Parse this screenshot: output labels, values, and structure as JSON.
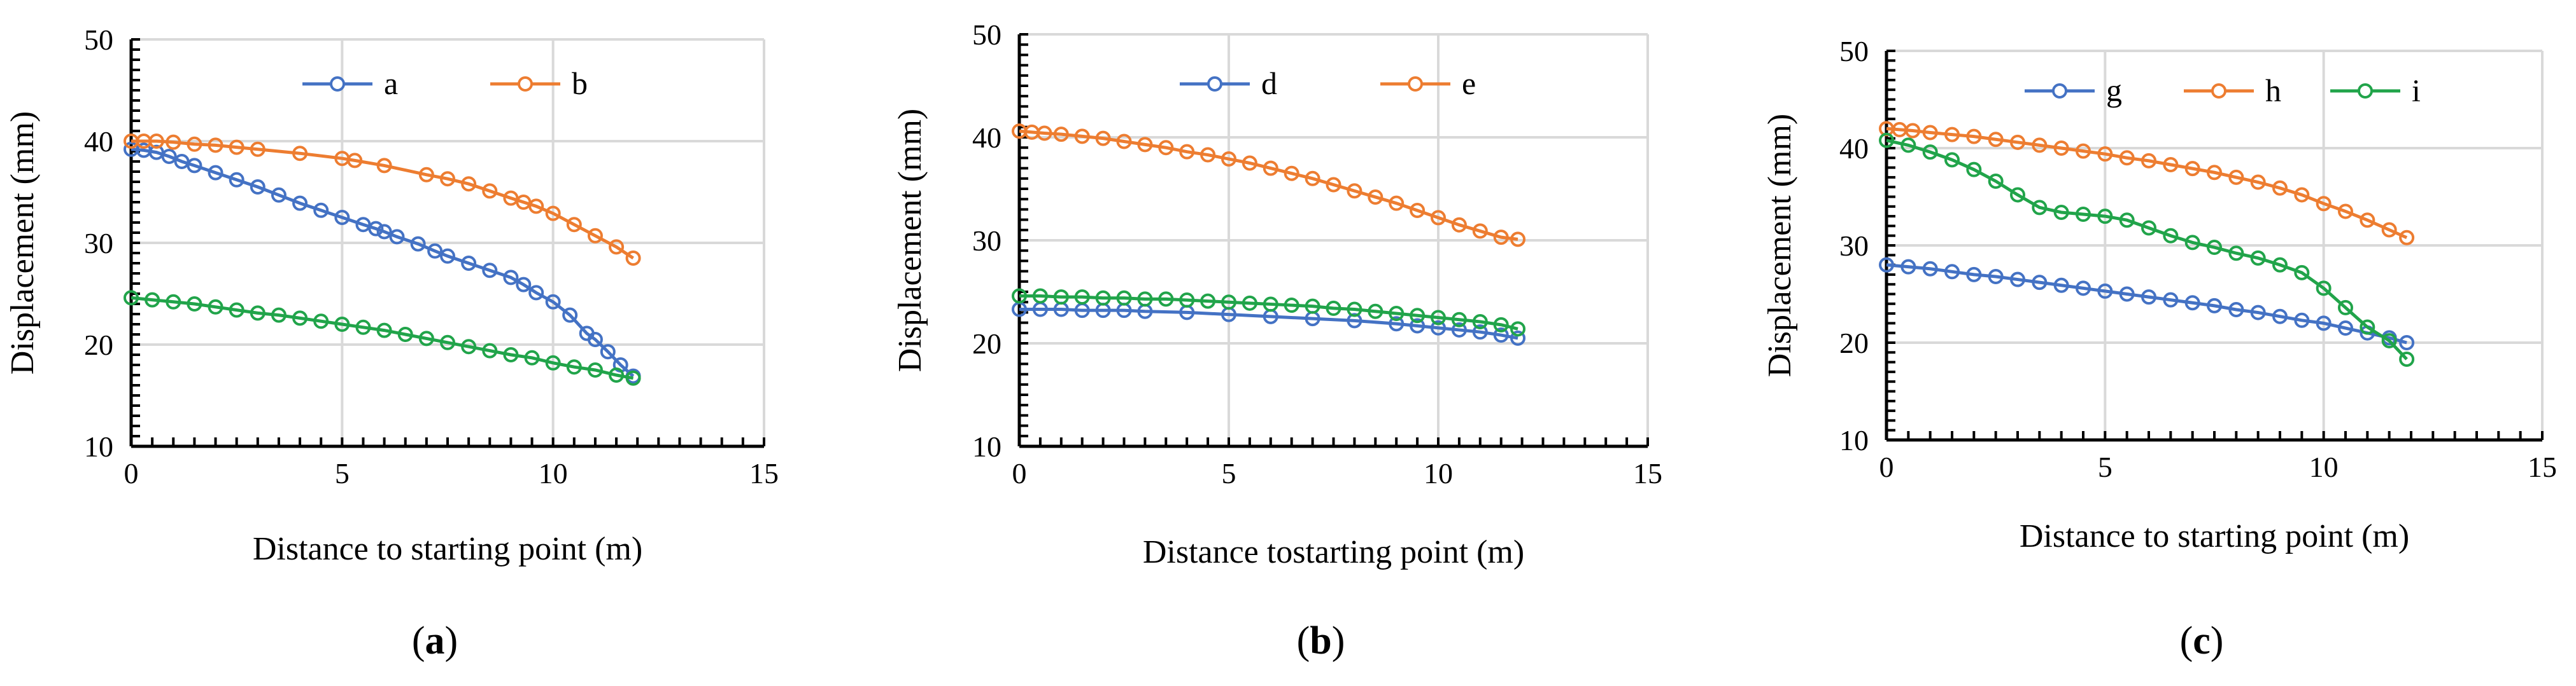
{
  "colors": {
    "blue": "#4472C4",
    "orange": "#ED7D31",
    "green": "#21A44A",
    "grid": "#D9D9D9",
    "axis": "#000000"
  },
  "chart_data": [
    {
      "type": "line",
      "label": "a",
      "panel_label": {
        "open": "(",
        "letter": "a",
        "close": ")"
      },
      "title": "",
      "xlabel": "Distance to starting point (m)",
      "ylabel": "Displacement (mm)",
      "xlim": [
        0,
        15
      ],
      "ylim": [
        10,
        50
      ],
      "xticks": [
        "0",
        "5",
        "10",
        "15"
      ],
      "yticks": [
        "10",
        "20",
        "30",
        "40",
        "50"
      ],
      "legend": [
        "a",
        "b"
      ],
      "series": [
        {
          "name": "a",
          "color": "blue",
          "x": [
            0,
            0.3,
            0.6,
            0.9,
            1.2,
            1.5,
            2,
            2.5,
            3,
            3.5,
            4,
            4.5,
            5,
            5.5,
            5.8,
            6,
            6.3,
            6.8,
            7.2,
            7.5,
            8,
            8.5,
            9,
            9.3,
            9.6,
            10,
            10.4,
            10.8,
            11,
            11.3,
            11.6,
            11.9
          ],
          "y": [
            39.2,
            39.1,
            38.9,
            38.5,
            38.0,
            37.6,
            36.9,
            36.2,
            35.5,
            34.7,
            33.9,
            33.2,
            32.5,
            31.8,
            31.4,
            31.1,
            30.6,
            29.9,
            29.2,
            28.7,
            28.0,
            27.3,
            26.6,
            25.9,
            25.1,
            24.2,
            22.9,
            21.1,
            20.5,
            19.3,
            18.0,
            16.9
          ]
        },
        {
          "name": "b",
          "color": "orange",
          "x": [
            0,
            0.3,
            0.6,
            1,
            1.5,
            2,
            2.5,
            3,
            4,
            5,
            5.3,
            6,
            7,
            7.5,
            8,
            8.5,
            9,
            9.3,
            9.6,
            10,
            10.5,
            11,
            11.5,
            11.9
          ],
          "y": [
            40.0,
            40.0,
            40.0,
            39.9,
            39.7,
            39.6,
            39.4,
            39.2,
            38.8,
            38.3,
            38.1,
            37.6,
            36.7,
            36.3,
            35.8,
            35.1,
            34.4,
            34.0,
            33.6,
            32.9,
            31.8,
            30.7,
            29.6,
            28.5
          ]
        },
        {
          "name": "",
          "color": "green",
          "x": [
            0,
            0.5,
            1,
            1.5,
            2,
            2.5,
            3,
            3.5,
            4,
            4.5,
            5,
            5.5,
            6,
            6.5,
            7,
            7.5,
            8,
            8.5,
            9,
            9.5,
            10,
            10.5,
            11,
            11.5,
            11.9
          ],
          "y": [
            24.6,
            24.4,
            24.2,
            24.0,
            23.7,
            23.4,
            23.1,
            22.9,
            22.6,
            22.3,
            22.0,
            21.7,
            21.4,
            21.0,
            20.6,
            20.2,
            19.8,
            19.4,
            19.0,
            18.7,
            18.2,
            17.8,
            17.5,
            17.0,
            16.7
          ]
        }
      ]
    },
    {
      "type": "line",
      "label": "b",
      "panel_label": {
        "open": "(",
        "letter": "b",
        "close": ")"
      },
      "title": "",
      "xlabel": "Distance tostarting point (m)",
      "ylabel": "Displacement (mm)",
      "xlim": [
        0,
        15
      ],
      "ylim": [
        10,
        50
      ],
      "xticks": [
        "0",
        "5",
        "10",
        "15"
      ],
      "yticks": [
        "10",
        "20",
        "30",
        "40",
        "50"
      ],
      "legend": [
        "d",
        "e"
      ],
      "series": [
        {
          "name": "d",
          "color": "blue",
          "x": [
            0,
            0.5,
            1,
            1.5,
            2,
            2.5,
            3,
            4,
            5,
            6,
            7,
            8,
            9,
            9.5,
            10,
            10.5,
            11,
            11.5,
            11.9
          ],
          "y": [
            23.3,
            23.3,
            23.3,
            23.2,
            23.2,
            23.2,
            23.1,
            23.0,
            22.8,
            22.6,
            22.4,
            22.2,
            21.9,
            21.7,
            21.5,
            21.3,
            21.1,
            20.8,
            20.5
          ]
        },
        {
          "name": "e",
          "color": "orange",
          "x": [
            0,
            0.3,
            0.6,
            1,
            1.5,
            2,
            2.5,
            3,
            3.5,
            4,
            4.5,
            5,
            5.5,
            6,
            6.5,
            7,
            7.5,
            8,
            8.5,
            9,
            9.5,
            10,
            10.5,
            11,
            11.5,
            11.9
          ],
          "y": [
            40.6,
            40.5,
            40.4,
            40.3,
            40.1,
            39.9,
            39.6,
            39.3,
            39.0,
            38.6,
            38.3,
            37.9,
            37.5,
            37.0,
            36.5,
            36.0,
            35.4,
            34.8,
            34.2,
            33.6,
            32.9,
            32.2,
            31.5,
            30.9,
            30.3,
            30.1
          ]
        },
        {
          "name": "",
          "color": "green",
          "x": [
            0,
            0.5,
            1,
            1.5,
            2,
            2.5,
            3,
            3.5,
            4,
            4.5,
            5,
            5.5,
            6,
            6.5,
            7,
            7.5,
            8,
            8.5,
            9,
            9.5,
            10,
            10.5,
            11,
            11.5,
            11.9
          ],
          "y": [
            24.6,
            24.6,
            24.5,
            24.5,
            24.4,
            24.4,
            24.3,
            24.3,
            24.2,
            24.1,
            24.0,
            23.9,
            23.8,
            23.7,
            23.6,
            23.4,
            23.3,
            23.1,
            22.9,
            22.7,
            22.5,
            22.3,
            22.1,
            21.8,
            21.4
          ]
        }
      ]
    },
    {
      "type": "line",
      "label": "c",
      "panel_label": {
        "open": "(",
        "letter": "c",
        "close": ")"
      },
      "title": "",
      "xlabel": "Distance to starting point (m)",
      "ylabel": "Displacement (mm)",
      "xlim": [
        0,
        15
      ],
      "ylim": [
        10,
        50
      ],
      "xticks": [
        "0",
        "5",
        "10",
        "15"
      ],
      "yticks": [
        "10",
        "20",
        "30",
        "40",
        "50"
      ],
      "legend": [
        "g",
        "h",
        "i"
      ],
      "series": [
        {
          "name": "g",
          "color": "blue",
          "x": [
            0,
            0.5,
            1,
            1.5,
            2,
            2.5,
            3,
            3.5,
            4,
            4.5,
            5,
            5.5,
            6,
            6.5,
            7,
            7.5,
            8,
            8.5,
            9,
            9.5,
            10,
            10.5,
            11,
            11.5,
            11.9
          ],
          "y": [
            28.0,
            27.8,
            27.6,
            27.3,
            27.0,
            26.8,
            26.5,
            26.2,
            25.9,
            25.6,
            25.3,
            25.0,
            24.7,
            24.4,
            24.1,
            23.8,
            23.4,
            23.1,
            22.7,
            22.3,
            22.0,
            21.5,
            21.0,
            20.5,
            20.0
          ]
        },
        {
          "name": "h",
          "color": "orange",
          "x": [
            0,
            0.3,
            0.6,
            1,
            1.5,
            2,
            2.5,
            3,
            3.5,
            4,
            4.5,
            5,
            5.5,
            6,
            6.5,
            7,
            7.5,
            8,
            8.5,
            9,
            9.5,
            10,
            10.5,
            11,
            11.5,
            11.9
          ],
          "y": [
            42.0,
            41.9,
            41.8,
            41.6,
            41.4,
            41.2,
            40.9,
            40.6,
            40.3,
            40.0,
            39.7,
            39.4,
            39.0,
            38.7,
            38.3,
            37.9,
            37.5,
            37.0,
            36.5,
            35.9,
            35.2,
            34.3,
            33.5,
            32.6,
            31.6,
            30.8
          ]
        },
        {
          "name": "i",
          "color": "green",
          "x": [
            0,
            0.5,
            1,
            1.5,
            2,
            2.5,
            3,
            3.5,
            4,
            4.5,
            5,
            5.5,
            6,
            6.5,
            7,
            7.5,
            8,
            8.5,
            9,
            9.5,
            10,
            10.5,
            11,
            11.5,
            11.9
          ],
          "y": [
            40.8,
            40.3,
            39.6,
            38.8,
            37.8,
            36.6,
            35.2,
            33.9,
            33.4,
            33.2,
            33.0,
            32.6,
            31.8,
            31.0,
            30.3,
            29.8,
            29.2,
            28.7,
            28.0,
            27.2,
            25.6,
            23.6,
            21.6,
            20.2,
            18.3
          ]
        }
      ]
    }
  ]
}
